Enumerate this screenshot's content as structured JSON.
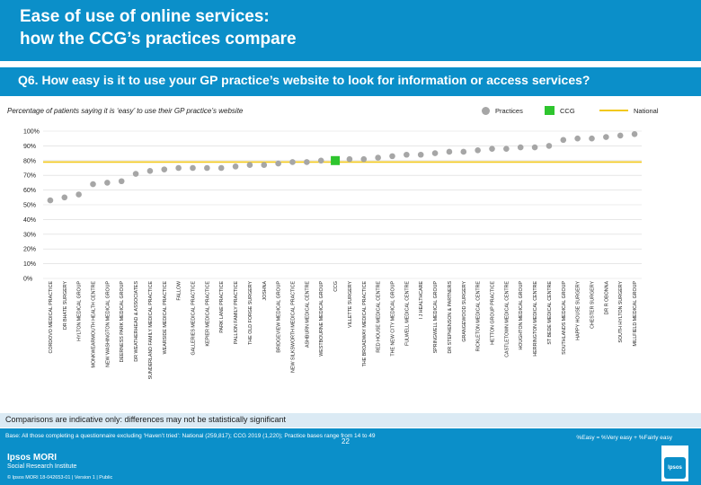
{
  "title": {
    "line1": "Ease of use of online services:",
    "line2": "how the CCG’s practices compare"
  },
  "question": "Q6. How easy is it to use your GP practice’s website to look for information or access services?",
  "subtitle": "Percentage of patients saying it is ‘easy’ to use their GP practice’s website",
  "legend": {
    "practices": "Practices",
    "ccg": "CCG",
    "national": "National"
  },
  "colors": {
    "practice": "#a6a6a6",
    "ccg": "#2ec52e",
    "national": "#f2c81a",
    "brand": "#0b8fc9"
  },
  "chart_data": {
    "type": "scatter",
    "y_tick_labels": [
      "0%",
      "10%",
      "20%",
      "30%",
      "40%",
      "50%",
      "60%",
      "70%",
      "80%",
      "90%",
      "100%"
    ],
    "ylim": [
      0,
      100
    ],
    "national": 79,
    "categories": [
      "CORDOVO MEDICAL PRACTICE",
      "DR BHATE SURGERY",
      "HYLTON MEDICAL GROUP",
      "MONKWEARMOUTH HEALTH CENTRE",
      "NEW WASHINGTON MEDICAL GROUP",
      "DEERNESS PARK MEDICAL GROUP",
      "DR WEATHERHEAD & ASSOCIATES",
      "SUNDERLAND FAMILY MEDICAL PRACTICE",
      "WEARSIDE MEDICAL PRACTICE",
      "FALLOW",
      "GALLERIES MEDICAL PRACTICE",
      "KEPIER MEDICAL PRACTICE",
      "PARK LANE PRACTICE",
      "PALLION FAMILY PRACTICE",
      "THE OLD FORGE SURGERY",
      "JOSHNA",
      "BRIDGEVIEW MEDICAL GROUP",
      "NEW SILKSWORTH MEDICAL PRACTICE",
      "ASHBURN MEDICAL CENTRE",
      "WESTBOURNE MEDICAL GROUP",
      "CCG",
      "VILLETTE SURGERY",
      "THE BROADWAY MEDICAL PRACTICE",
      "RED HOUSE MEDICAL CENTRE",
      "THE NEW CITY MEDICAL GROUP",
      "FULWELL MEDICAL CENTRE",
      "I J HEALTHCARE",
      "SPRINGWELL MEDICAL GROUP",
      "DR STEPHENSON & PARTNERS",
      "GRANGEWOOD SURGERY",
      "RICKLETON MEDICAL CENTRE",
      "HETTON GROUP PRACTICE",
      "CASTLETOWN MEDICAL CENTRE",
      "HOUGHTON MEDICAL GROUP",
      "HERRINGTON MEDICAL CENTRE",
      "ST BEDE MEDICAL CENTRE",
      "SOUTHLANDS MEDICAL GROUP",
      "HAPPY HOUSE SURGERY",
      "CHESTER SURGERY",
      "DR R OBONNA",
      "SOUTH HYLTON SURGERY",
      "MILLFIELD MEDICAL GROUP"
    ],
    "values": [
      53,
      55,
      57,
      64,
      65,
      66,
      71,
      73,
      74,
      75,
      75,
      75,
      75,
      76,
      77,
      77,
      78,
      79,
      79,
      80,
      80,
      81,
      81,
      82,
      83,
      84,
      84,
      85,
      86,
      86,
      87,
      88,
      88,
      89,
      89,
      90,
      94,
      95,
      95,
      96,
      97,
      98
    ],
    "kinds": [
      "practice",
      "practice",
      "practice",
      "practice",
      "practice",
      "practice",
      "practice",
      "practice",
      "practice",
      "practice",
      "practice",
      "practice",
      "practice",
      "practice",
      "practice",
      "practice",
      "practice",
      "practice",
      "practice",
      "practice",
      "ccg",
      "practice",
      "practice",
      "practice",
      "practice",
      "practice",
      "practice",
      "practice",
      "practice",
      "practice",
      "practice",
      "practice",
      "practice",
      "practice",
      "practice",
      "practice",
      "practice",
      "practice",
      "practice",
      "practice",
      "practice",
      "practice"
    ]
  },
  "note": "Comparisons are indicative only: differences may not be statistically significant",
  "footer": {
    "base": "Base: All those completing a questionnaire excluding ‘Haven’t tried’: National (259,817); CCG 2019 (1,220); Practice bases range from 14 to 49",
    "key": "%Easy = %Very easy + %Fairly easy",
    "page_number": "22",
    "brand": "Ipsos MORI",
    "brand_sub": "Social Research Institute",
    "copyright": "© Ipsos MORI     18-042653-01 | Version 1 | Public",
    "logo_text": "Ipsos"
  }
}
